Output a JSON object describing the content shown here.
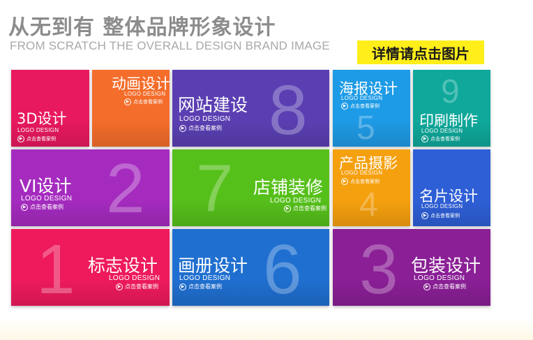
{
  "header": {
    "title": "从无到有 整体品牌形象设计",
    "subtitle": "FROM SCRATCH  THE OVERALL DESIGN BRAND IMAGE",
    "details_button": "详情请点击图片"
  },
  "tile_common": {
    "subtitle": "LOGO DESIGN",
    "view_label": "点击查看案例"
  },
  "tiles": [
    {
      "title": "3D设计",
      "number": "",
      "color": "#e8195e"
    },
    {
      "title": "动画设计",
      "number": "",
      "color": "#f46d2b"
    },
    {
      "title": "网站建设",
      "number": "8",
      "color": "#5b3fb2"
    },
    {
      "title": "海报设计",
      "number": "5",
      "color": "#1e9be6"
    },
    {
      "title": "印刷制作",
      "number": "9",
      "color": "#0fa89b"
    },
    {
      "title": "VI设计",
      "number": "2",
      "color": "#a52bbf"
    },
    {
      "title": "店铺装修",
      "number": "7",
      "color": "#56c01b"
    },
    {
      "title": "产品摄影",
      "number": "4",
      "color": "#f5a00e"
    },
    {
      "title": "名片设计",
      "number": "",
      "color": "#2e5fd6"
    },
    {
      "title": "标志设计",
      "number": "1",
      "color": "#ee1a5c"
    },
    {
      "title": "画册设计",
      "number": "6",
      "color": "#1f6fd0"
    },
    {
      "title": "包装设计",
      "number": "3",
      "color": "#8a1f96"
    }
  ]
}
